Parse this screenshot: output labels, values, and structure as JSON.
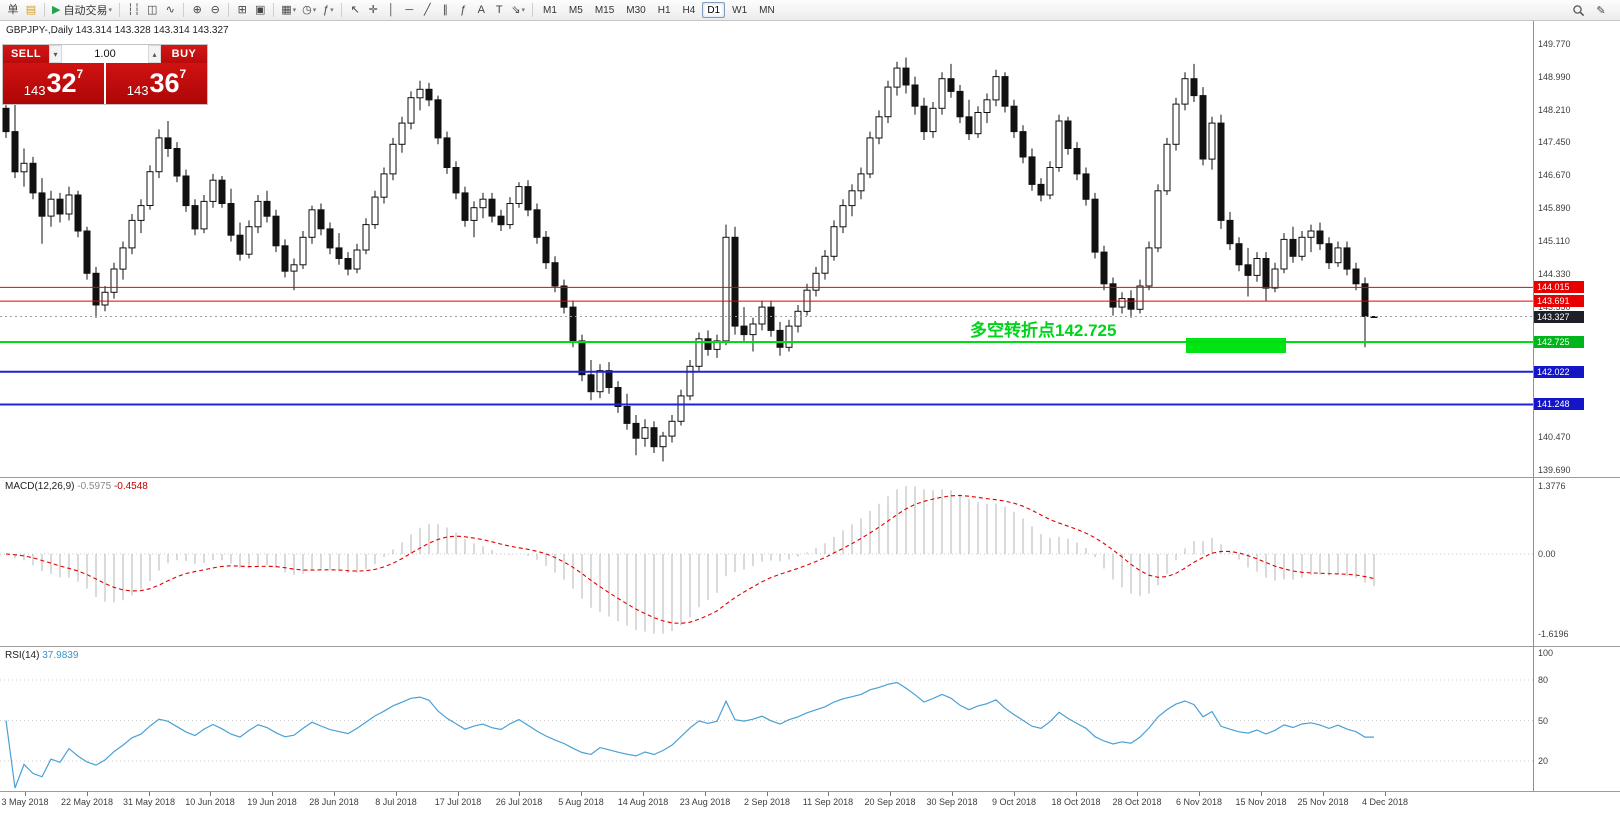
{
  "toolbar": {
    "groups": [
      [
        {
          "name": "new-order-button",
          "glyph": "单"
        },
        {
          "name": "charts-folder-button",
          "glyph": "▤",
          "color": "#d99a1f"
        }
      ],
      [
        {
          "name": "auto-trading-button",
          "glyph": "▶",
          "color": "#1fa64b",
          "label": "自动交易",
          "caret": true
        }
      ],
      [
        {
          "name": "bar-chart-mode-button",
          "glyph": "┆┆"
        },
        {
          "name": "candlestick-mode-button",
          "glyph": "◫"
        },
        {
          "name": "line-chart-mode-button",
          "glyph": "∿"
        }
      ],
      [
        {
          "name": "zoom-in-button",
          "glyph": "⊕"
        },
        {
          "name": "zoom-out-button",
          "glyph": "⊖"
        }
      ],
      [
        {
          "name": "grid-button",
          "glyph": "⊞"
        },
        {
          "name": "arrange-windows-button",
          "glyph": "▣"
        }
      ],
      [
        {
          "name": "new-chart-button",
          "glyph": "▦",
          "caret": true
        },
        {
          "name": "period-menu-button",
          "glyph": "◷",
          "caret": true
        },
        {
          "name": "indicators-menu-button",
          "glyph": "ƒ",
          "caret": true
        }
      ],
      [
        {
          "name": "cursor-button",
          "glyph": "↖"
        },
        {
          "name": "crosshair-button",
          "glyph": "✛"
        },
        {
          "name": "vertical-line-button",
          "glyph": "│"
        },
        {
          "name": "horizontal-line-button",
          "glyph": "─"
        },
        {
          "name": "trendline-button",
          "glyph": "╱"
        },
        {
          "name": "channel-button",
          "glyph": "∥"
        },
        {
          "name": "fibonacci-button",
          "glyph": "ƒ"
        },
        {
          "name": "text-button",
          "glyph": "A"
        },
        {
          "name": "label-button",
          "glyph": "T"
        },
        {
          "name": "arrows-button",
          "glyph": "⇘",
          "caret": true
        }
      ]
    ],
    "timeframes": [
      "M1",
      "M5",
      "M15",
      "M30",
      "H1",
      "H4",
      "D1",
      "W1",
      "MN"
    ],
    "active_timeframe": "D1",
    "edit_glyph": "✎"
  },
  "chart": {
    "symbol_label": "GBPJPY-,Daily",
    "ohlc": "143.314 143.328 143.314 143.327",
    "annotation": "多空转折点142.725",
    "highlight_color": "#00e414",
    "axis_labels": [
      {
        "v": 149.77,
        "t": "149.770"
      },
      {
        "v": 148.99,
        "t": "148.990"
      },
      {
        "v": 148.21,
        "t": "148.210"
      },
      {
        "v": 147.45,
        "t": "147.450"
      },
      {
        "v": 146.67,
        "t": "146.670"
      },
      {
        "v": 145.89,
        "t": "145.890"
      },
      {
        "v": 145.11,
        "t": "145.110"
      },
      {
        "v": 144.33,
        "t": "144.330"
      },
      {
        "v": 143.55,
        "t": "143.550"
      },
      {
        "v": 142.77,
        "t": "142.770"
      },
      {
        "v": 141.99,
        "t": "141.990"
      },
      {
        "v": 141.21,
        "t": "141.210"
      },
      {
        "v": 140.47,
        "t": "140.470"
      },
      {
        "v": 139.69,
        "t": "139.690"
      }
    ],
    "levels": [
      {
        "value": 144.015,
        "label": "144.015",
        "color": "#e80000",
        "tag_bg": "#e80000",
        "width": 1,
        "dashed": false
      },
      {
        "value": 143.691,
        "label": "143.691",
        "color": "#e80000",
        "tag_bg": "#e80000",
        "width": 1,
        "dashed": false
      },
      {
        "value": 143.327,
        "label": "143.327",
        "color": "#9aa0a6",
        "tag_bg": "#1f1f28",
        "width": 1,
        "dashed": true
      },
      {
        "value": 142.725,
        "label": "142.725",
        "color": "#00dc14",
        "tag_bg": "#00b41c",
        "width": 2,
        "dashed": false
      },
      {
        "value": 142.022,
        "label": "142.022",
        "color": "#2121cf",
        "tag_bg": "#1515c8",
        "width": 2,
        "dashed": false
      },
      {
        "value": 141.248,
        "label": "141.248",
        "color": "#2121cf",
        "tag_bg": "#1515c8",
        "width": 2,
        "dashed": false
      }
    ]
  },
  "trade": {
    "sell_label": "SELL",
    "buy_label": "BUY",
    "lot": "1.00",
    "bid_prefix": "143",
    "bid_main": "32",
    "bid_pip": "7",
    "ask_prefix": "143",
    "ask_main": "36",
    "ask_pip": "7"
  },
  "macd": {
    "name": "MACD(12,26,9)",
    "v1": "-0.5975",
    "v2": "-0.4548",
    "axis": [
      {
        "v": 1.3776,
        "t": "1.3776"
      },
      {
        "v": 0,
        "t": "0.00"
      },
      {
        "v": -1.6196,
        "t": "-1.6196"
      }
    ]
  },
  "rsi": {
    "name": "RSI(14)",
    "value": "37.9839",
    "axis": [
      {
        "v": 100,
        "t": "100"
      },
      {
        "v": 80,
        "t": "80"
      },
      {
        "v": 50,
        "t": "50"
      },
      {
        "v": 20,
        "t": "20"
      }
    ],
    "level_lines": [
      80,
      50,
      20
    ]
  },
  "time_axis": [
    "3 May 2018",
    "22 May 2018",
    "31 May 2018",
    "10 Jun 2018",
    "19 Jun 2018",
    "28 Jun 2018",
    "8 Jul 2018",
    "17 Jul 2018",
    "26 Jul 2018",
    "5 Aug 2018",
    "14 Aug 2018",
    "23 Aug 2018",
    "2 Sep 2018",
    "11 Sep 2018",
    "20 Sep 2018",
    "30 Sep 2018",
    "9 Oct 2018",
    "18 Oct 2018",
    "28 Oct 2018",
    "6 Nov 2018",
    "15 Nov 2018",
    "25 Nov 2018",
    "4 Dec 2018"
  ],
  "chart_data": {
    "type": "candlestick",
    "symbol": "GBPJPY",
    "period": "Daily",
    "current_ohlc": [
      143.314,
      143.328,
      143.314,
      143.327
    ],
    "indicators": [
      {
        "type": "MACD",
        "params": [
          12,
          26,
          9
        ],
        "last_values": [
          -0.5975,
          -0.4548
        ],
        "scale": [
          -1.6196,
          1.3776
        ]
      },
      {
        "type": "RSI",
        "params": [
          14
        ],
        "last_value": 37.9839,
        "scale": [
          0,
          100
        ]
      }
    ],
    "candles": [
      [
        148.25,
        148.4,
        147.55,
        147.7
      ],
      [
        147.7,
        148.45,
        146.6,
        146.75
      ],
      [
        146.75,
        147.3,
        146.4,
        146.95
      ],
      [
        146.95,
        147.1,
        146.1,
        146.25
      ],
      [
        146.25,
        146.6,
        145.05,
        145.7
      ],
      [
        145.7,
        146.3,
        145.45,
        146.1
      ],
      [
        146.1,
        146.25,
        145.55,
        145.75
      ],
      [
        145.75,
        146.4,
        145.6,
        146.2
      ],
      [
        146.2,
        146.3,
        145.2,
        145.35
      ],
      [
        145.35,
        145.45,
        144.2,
        144.35
      ],
      [
        144.35,
        144.5,
        143.3,
        143.6
      ],
      [
        143.6,
        144.05,
        143.45,
        143.9
      ],
      [
        143.9,
        144.6,
        143.75,
        144.45
      ],
      [
        144.45,
        145.1,
        144.2,
        144.95
      ],
      [
        144.95,
        145.75,
        144.8,
        145.6
      ],
      [
        145.6,
        146.1,
        145.3,
        145.95
      ],
      [
        145.95,
        146.9,
        145.85,
        146.75
      ],
      [
        146.75,
        147.75,
        146.6,
        147.55
      ],
      [
        147.55,
        147.95,
        147.1,
        147.3
      ],
      [
        147.3,
        147.45,
        146.5,
        146.65
      ],
      [
        146.65,
        146.8,
        145.8,
        145.95
      ],
      [
        145.95,
        146.1,
        145.25,
        145.4
      ],
      [
        145.4,
        146.2,
        145.3,
        146.05
      ],
      [
        146.05,
        146.7,
        145.9,
        146.55
      ],
      [
        146.55,
        146.65,
        145.9,
        146.0
      ],
      [
        146.0,
        146.35,
        145.1,
        145.25
      ],
      [
        145.25,
        145.55,
        144.65,
        144.8
      ],
      [
        144.8,
        145.6,
        144.7,
        145.45
      ],
      [
        145.45,
        146.2,
        145.3,
        146.05
      ],
      [
        146.05,
        146.3,
        145.55,
        145.7
      ],
      [
        145.7,
        145.85,
        144.85,
        145.0
      ],
      [
        145.0,
        145.15,
        144.25,
        144.4
      ],
      [
        144.4,
        144.7,
        143.95,
        144.55
      ],
      [
        144.55,
        145.35,
        144.45,
        145.2
      ],
      [
        145.2,
        145.95,
        145.05,
        145.85
      ],
      [
        145.85,
        146.0,
        145.25,
        145.4
      ],
      [
        145.4,
        145.55,
        144.8,
        144.95
      ],
      [
        144.95,
        145.3,
        144.55,
        144.7
      ],
      [
        144.7,
        144.85,
        144.3,
        144.45
      ],
      [
        144.45,
        145.05,
        144.35,
        144.9
      ],
      [
        144.9,
        145.65,
        144.8,
        145.5
      ],
      [
        145.5,
        146.3,
        145.4,
        146.15
      ],
      [
        146.15,
        146.85,
        146.0,
        146.7
      ],
      [
        146.7,
        147.55,
        146.55,
        147.4
      ],
      [
        147.4,
        148.05,
        147.2,
        147.9
      ],
      [
        147.9,
        148.65,
        147.75,
        148.5
      ],
      [
        148.5,
        148.9,
        148.2,
        148.7
      ],
      [
        148.7,
        148.85,
        148.3,
        148.45
      ],
      [
        148.45,
        148.55,
        147.4,
        147.55
      ],
      [
        147.55,
        147.7,
        146.7,
        146.85
      ],
      [
        146.85,
        147.0,
        146.1,
        146.25
      ],
      [
        146.25,
        146.4,
        145.45,
        145.6
      ],
      [
        145.6,
        146.05,
        145.2,
        145.9
      ],
      [
        145.9,
        146.25,
        145.65,
        146.1
      ],
      [
        146.1,
        146.25,
        145.55,
        145.7
      ],
      [
        145.7,
        145.85,
        145.35,
        145.5
      ],
      [
        145.5,
        146.15,
        145.4,
        146.0
      ],
      [
        146.0,
        146.5,
        145.9,
        146.4
      ],
      [
        146.4,
        146.55,
        145.7,
        145.85
      ],
      [
        145.85,
        146.0,
        145.05,
        145.2
      ],
      [
        145.2,
        145.35,
        144.45,
        144.6
      ],
      [
        144.6,
        144.75,
        143.9,
        144.05
      ],
      [
        144.05,
        144.2,
        143.4,
        143.55
      ],
      [
        143.55,
        143.7,
        142.6,
        142.75
      ],
      [
        142.75,
        142.9,
        141.8,
        141.95
      ],
      [
        141.95,
        142.3,
        141.35,
        141.55
      ],
      [
        141.55,
        142.2,
        141.4,
        142.05
      ],
      [
        142.05,
        142.25,
        141.5,
        141.65
      ],
      [
        141.65,
        141.8,
        141.05,
        141.2
      ],
      [
        141.2,
        141.5,
        140.65,
        140.8
      ],
      [
        140.8,
        141.0,
        140.05,
        140.45
      ],
      [
        140.45,
        140.9,
        140.25,
        140.7
      ],
      [
        140.7,
        140.85,
        140.1,
        140.25
      ],
      [
        140.25,
        140.6,
        139.9,
        140.5
      ],
      [
        140.5,
        141.0,
        140.35,
        140.85
      ],
      [
        140.85,
        141.6,
        140.75,
        141.45
      ],
      [
        141.45,
        142.3,
        141.35,
        142.15
      ],
      [
        142.15,
        142.95,
        142.05,
        142.8
      ],
      [
        142.8,
        143.0,
        142.4,
        142.55
      ],
      [
        142.55,
        142.9,
        142.35,
        142.75
      ],
      [
        142.75,
        145.5,
        142.65,
        145.2
      ],
      [
        145.2,
        145.45,
        142.9,
        143.1
      ],
      [
        143.1,
        143.55,
        142.75,
        142.9
      ],
      [
        142.9,
        143.3,
        142.5,
        143.15
      ],
      [
        143.15,
        143.7,
        143.0,
        143.55
      ],
      [
        143.55,
        143.7,
        142.85,
        143.0
      ],
      [
        143.0,
        143.2,
        142.4,
        142.6
      ],
      [
        142.6,
        143.25,
        142.5,
        143.1
      ],
      [
        143.1,
        143.6,
        142.95,
        143.45
      ],
      [
        143.45,
        144.1,
        143.35,
        143.95
      ],
      [
        143.95,
        144.5,
        143.8,
        144.35
      ],
      [
        144.35,
        144.9,
        144.2,
        144.75
      ],
      [
        144.75,
        145.6,
        144.65,
        145.45
      ],
      [
        145.45,
        146.1,
        145.3,
        145.95
      ],
      [
        145.95,
        146.45,
        145.7,
        146.3
      ],
      [
        146.3,
        146.85,
        146.1,
        146.7
      ],
      [
        146.7,
        147.7,
        146.6,
        147.55
      ],
      [
        147.55,
        148.2,
        147.4,
        148.05
      ],
      [
        148.05,
        148.9,
        147.9,
        148.75
      ],
      [
        148.75,
        149.35,
        148.55,
        149.2
      ],
      [
        149.2,
        149.45,
        148.6,
        148.8
      ],
      [
        148.8,
        149.0,
        148.1,
        148.3
      ],
      [
        148.3,
        148.5,
        147.5,
        147.7
      ],
      [
        147.7,
        148.4,
        147.55,
        148.25
      ],
      [
        148.25,
        149.1,
        148.1,
        148.95
      ],
      [
        148.95,
        149.3,
        148.5,
        148.65
      ],
      [
        148.65,
        148.8,
        147.9,
        148.05
      ],
      [
        148.05,
        148.45,
        147.5,
        147.65
      ],
      [
        147.65,
        148.3,
        147.55,
        148.15
      ],
      [
        148.15,
        148.6,
        147.9,
        148.45
      ],
      [
        148.45,
        149.16,
        148.3,
        149.0
      ],
      [
        149.0,
        149.1,
        148.15,
        148.3
      ],
      [
        148.3,
        148.45,
        147.55,
        147.7
      ],
      [
        147.7,
        147.85,
        146.95,
        147.1
      ],
      [
        147.1,
        147.3,
        146.3,
        146.45
      ],
      [
        146.45,
        146.6,
        146.05,
        146.2
      ],
      [
        146.2,
        147.0,
        146.1,
        146.85
      ],
      [
        146.85,
        148.1,
        146.75,
        147.95
      ],
      [
        147.95,
        148.05,
        147.15,
        147.3
      ],
      [
        147.3,
        147.45,
        146.55,
        146.7
      ],
      [
        146.7,
        146.85,
        145.95,
        146.1
      ],
      [
        146.1,
        146.25,
        144.7,
        144.85
      ],
      [
        144.85,
        145.0,
        143.95,
        144.1
      ],
      [
        144.1,
        144.25,
        143.35,
        143.55
      ],
      [
        143.55,
        143.9,
        143.4,
        143.75
      ],
      [
        143.75,
        143.95,
        143.3,
        143.5
      ],
      [
        143.5,
        144.2,
        143.4,
        144.05
      ],
      [
        144.05,
        145.1,
        143.95,
        144.95
      ],
      [
        144.95,
        146.45,
        144.85,
        146.3
      ],
      [
        146.3,
        147.55,
        146.2,
        147.4
      ],
      [
        147.4,
        148.5,
        147.25,
        148.35
      ],
      [
        148.35,
        149.1,
        148.2,
        148.95
      ],
      [
        148.95,
        149.3,
        148.4,
        148.55
      ],
      [
        148.55,
        148.75,
        146.9,
        147.05
      ],
      [
        147.05,
        148.05,
        146.8,
        147.9
      ],
      [
        147.9,
        148.1,
        145.4,
        145.6
      ],
      [
        145.6,
        145.8,
        144.9,
        145.05
      ],
      [
        145.05,
        145.2,
        144.4,
        144.55
      ],
      [
        144.55,
        144.95,
        143.8,
        144.3
      ],
      [
        144.3,
        144.85,
        144.15,
        144.7
      ],
      [
        144.7,
        144.85,
        143.7,
        144.0
      ],
      [
        144.0,
        144.6,
        143.9,
        144.45
      ],
      [
        144.45,
        145.3,
        144.35,
        145.15
      ],
      [
        145.15,
        145.45,
        144.6,
        144.75
      ],
      [
        144.75,
        145.35,
        144.65,
        145.2
      ],
      [
        145.2,
        145.5,
        144.85,
        145.35
      ],
      [
        145.35,
        145.55,
        144.9,
        145.05
      ],
      [
        145.05,
        145.2,
        144.45,
        144.6
      ],
      [
        144.6,
        145.1,
        144.5,
        144.95
      ],
      [
        144.95,
        145.1,
        144.3,
        144.45
      ],
      [
        144.45,
        144.6,
        143.95,
        144.1
      ],
      [
        144.1,
        144.25,
        142.6,
        143.33
      ],
      [
        143.314,
        143.328,
        143.314,
        143.327
      ]
    ]
  }
}
